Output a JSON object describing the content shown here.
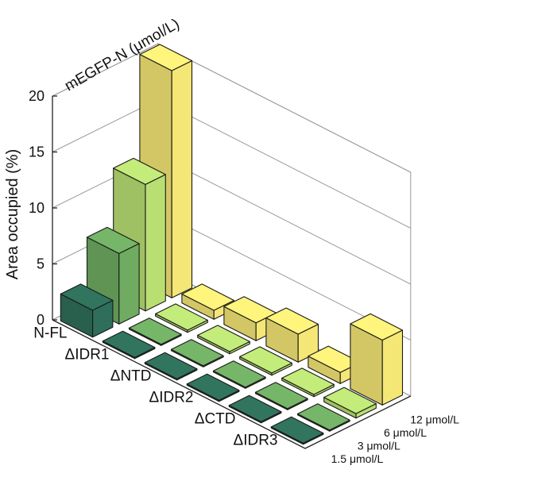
{
  "chart_data": {
    "type": "bar3d",
    "title": "mEGFP-N (μmol/L)",
    "ylabel": "Area occupied (%)",
    "zlim": [
      0,
      20
    ],
    "zticks": [
      0,
      5,
      10,
      15,
      20
    ],
    "categories": [
      "N-FL",
      "ΔIDR1",
      "ΔNTD",
      "ΔIDR2",
      "ΔCTD",
      "ΔIDR3"
    ],
    "series": [
      {
        "name": "1.5 μmol/L",
        "color": "#2e6e5a",
        "values": [
          2.4,
          0.1,
          0.1,
          0.1,
          0.1,
          0.1
        ]
      },
      {
        "name": "3 μmol/L",
        "color": "#6fac62",
        "values": [
          6.3,
          0.1,
          0.1,
          0.1,
          0.1,
          0.1
        ]
      },
      {
        "name": "6 μmol/L",
        "color": "#b9df73",
        "values": [
          11.3,
          0.2,
          0.2,
          0.2,
          0.2,
          0.4
        ]
      },
      {
        "name": "12 μmol/L",
        "color": "#f5e775",
        "values": [
          20.3,
          0.8,
          1.6,
          2.5,
          1.0,
          5.8
        ]
      }
    ],
    "grid": true
  }
}
